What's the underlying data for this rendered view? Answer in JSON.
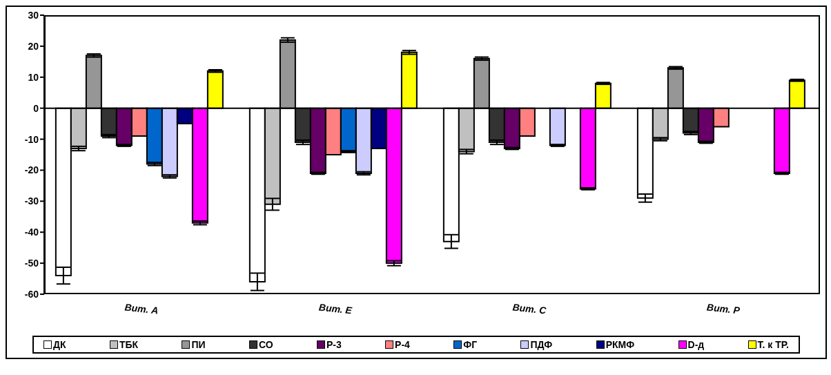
{
  "chart_data": {
    "type": "bar",
    "categories": [
      "Вит. А",
      "Вит. Е",
      "Вит. С",
      "Вит. Р"
    ],
    "series": [
      {
        "name": "ДК",
        "color": "#ffffff",
        "values": [
          -54,
          -56,
          -43,
          -29
        ],
        "errors": [
          2.7,
          2.8,
          2.2,
          1.3
        ]
      },
      {
        "name": "ТБК",
        "color": "#c0c0c0",
        "values": [
          -13,
          -31,
          -14,
          -10
        ],
        "errors": [
          0.7,
          1.9,
          0.7,
          0.5
        ]
      },
      {
        "name": "ПИ",
        "color": "#969696",
        "values": [
          17,
          22,
          16,
          13
        ],
        "errors": [
          0.5,
          0.7,
          0.5,
          0.4
        ]
      },
      {
        "name": "СО",
        "color": "#333333",
        "values": [
          -9,
          -11,
          -11,
          -8
        ],
        "errors": [
          0.5,
          0.7,
          0.7,
          0.5
        ]
      },
      {
        "name": "Р-3",
        "color": "#660066",
        "values": [
          -12,
          -21,
          -13,
          -11
        ],
        "errors": [
          0.3,
          0.3,
          0.3,
          0.3
        ]
      },
      {
        "name": "Р-4",
        "color": "#ff8080",
        "values": [
          -9,
          -15,
          -9,
          -6
        ]
      },
      {
        "name": "ФГ",
        "color": "#0066cc",
        "values": [
          -18,
          -14,
          0,
          0
        ],
        "errors": [
          0.5,
          0.3,
          null,
          null
        ]
      },
      {
        "name": "ПДФ",
        "color": "#ccccff",
        "values": [
          -22,
          -21,
          -12,
          0
        ],
        "errors": [
          0.5,
          0.5,
          0.3,
          null
        ]
      },
      {
        "name": "РКМФ",
        "color": "#000080",
        "values": [
          -5,
          -13,
          0,
          0
        ]
      },
      {
        "name": "D-д",
        "color": "#ff00ff",
        "values": [
          -37,
          -50,
          -26,
          -21
        ],
        "errors": [
          0.6,
          0.8,
          0.3,
          0.3
        ]
      },
      {
        "name": "Т. к ТР.",
        "color": "#ffff00",
        "values": [
          12,
          18,
          8,
          9
        ],
        "errors": [
          0.4,
          0.6,
          0.3,
          0.3
        ]
      }
    ],
    "ylim": [
      -60,
      30
    ],
    "yticks": [
      -60,
      -50,
      -40,
      -30,
      -20,
      -10,
      0,
      10,
      20,
      30
    ],
    "legend": "bottom"
  }
}
